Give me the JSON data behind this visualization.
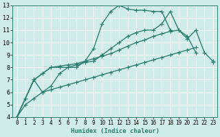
{
  "background_color": "#d0ecea",
  "grid_color": "#ffffff",
  "line_color": "#2d7d6e",
  "line_width": 1.0,
  "marker": "+",
  "marker_size": 4,
  "marker_edge_width": 0.8,
  "xlabel": "Humidex (Indice chaleur)",
  "xlim": [
    -0.5,
    23.5
  ],
  "ylim": [
    4,
    13
  ],
  "xticks": [
    0,
    1,
    2,
    3,
    4,
    5,
    6,
    7,
    8,
    9,
    10,
    11,
    12,
    13,
    14,
    15,
    16,
    17,
    18,
    19,
    20,
    21,
    22,
    23
  ],
  "yticks": [
    4,
    5,
    6,
    7,
    8,
    9,
    10,
    11,
    12,
    13
  ],
  "series": [
    {
      "x": [
        0,
        1,
        2,
        3,
        4,
        5,
        6,
        7,
        8,
        9,
        10,
        11,
        12,
        13,
        14,
        15,
        16,
        17,
        18
      ],
      "y": [
        4,
        5.5,
        7,
        6,
        6.5,
        7.5,
        8.0,
        8.0,
        8.5,
        9.5,
        11.5,
        12.5,
        13.0,
        12.7,
        12.6,
        12.6,
        12.5,
        12.5,
        11.0
      ]
    },
    {
      "x": [
        0,
        2,
        3,
        4,
        5,
        6,
        7,
        8,
        9,
        10,
        11,
        12,
        13,
        14,
        15,
        16,
        17,
        18,
        19,
        20,
        21
      ],
      "y": [
        4,
        7,
        7.5,
        8.0,
        8.0,
        8.0,
        8.2,
        8.4,
        8.5,
        9.0,
        9.5,
        10.0,
        10.5,
        10.8,
        11.0,
        11.0,
        11.5,
        12.5,
        11.0,
        10.5,
        9.2
      ]
    },
    {
      "x": [
        0,
        1,
        2,
        3,
        4,
        5,
        6,
        7,
        8,
        9,
        10,
        11,
        12,
        13,
        14,
        15,
        16,
        17,
        18,
        19,
        20,
        21,
        22,
        23
      ],
      "y": [
        4,
        5.5,
        7,
        7.5,
        8.0,
        8.1,
        8.2,
        8.3,
        8.5,
        8.7,
        8.9,
        9.1,
        9.4,
        9.7,
        10.0,
        10.2,
        10.5,
        10.7,
        10.9,
        11.0,
        10.3,
        11.0,
        9.2,
        8.5
      ]
    },
    {
      "x": [
        0,
        1,
        2,
        3,
        4,
        5,
        6,
        7,
        8,
        9,
        10,
        11,
        12,
        13,
        14,
        15,
        16,
        17,
        18,
        19,
        20,
        21,
        22,
        23
      ],
      "y": [
        4,
        5.0,
        5.5,
        6.0,
        6.2,
        6.4,
        6.6,
        6.8,
        7.0,
        7.2,
        7.4,
        7.6,
        7.8,
        8.0,
        8.2,
        8.4,
        8.6,
        8.8,
        9.0,
        9.2,
        9.4,
        9.6,
        null,
        8.4
      ]
    }
  ]
}
